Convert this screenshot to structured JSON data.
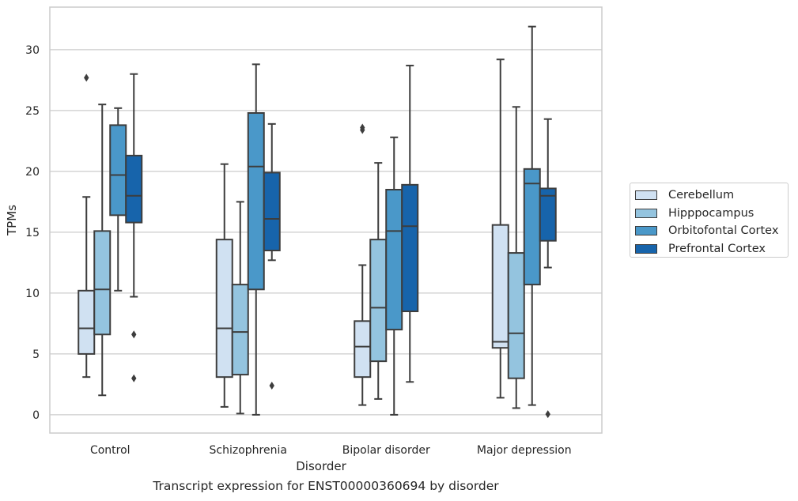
{
  "caption": "Transcript expression for ENST00000360694 by disorder",
  "legend_label_ids": [
    "Cerebellum",
    "Hipppocampus",
    "Orbitofontal Cortex",
    "Prefrontal Cortex"
  ],
  "chart_data": {
    "type": "box",
    "title": "",
    "xlabel": "Disorder",
    "ylabel": "TPMs",
    "ylim": [
      -1.5,
      33.5
    ],
    "yticks": [
      0,
      5,
      10,
      15,
      20,
      25,
      30
    ],
    "categories": [
      "Control",
      "Schizophrenia",
      "Bipolar disorder",
      "Major depression"
    ],
    "grid": "horizontal",
    "legend_position": "right",
    "series": [
      {
        "name": "Cerebellum",
        "color": "#d0e1f2",
        "boxes": [
          {
            "whislo": 3.1,
            "q1": 5.0,
            "med": 7.1,
            "q3": 10.2,
            "whishi": 17.9,
            "fliers": [
              27.7
            ]
          },
          {
            "whislo": 0.65,
            "q1": 3.1,
            "med": 7.1,
            "q3": 14.4,
            "whishi": 20.6,
            "fliers": []
          },
          {
            "whislo": 0.8,
            "q1": 3.1,
            "med": 5.6,
            "q3": 7.7,
            "whishi": 12.3,
            "fliers": [
              23.4,
              23.6
            ]
          },
          {
            "whislo": 1.4,
            "q1": 5.5,
            "med": 6.0,
            "q3": 15.6,
            "whishi": 29.2,
            "fliers": []
          }
        ]
      },
      {
        "name": "Hipppocampus",
        "color": "#94c4df",
        "boxes": [
          {
            "whislo": 1.6,
            "q1": 6.6,
            "med": 10.3,
            "q3": 15.1,
            "whishi": 25.5,
            "fliers": []
          },
          {
            "whislo": 0.1,
            "q1": 3.3,
            "med": 6.8,
            "q3": 10.7,
            "whishi": 17.5,
            "fliers": []
          },
          {
            "whislo": 1.3,
            "q1": 4.4,
            "med": 8.8,
            "q3": 14.4,
            "whishi": 20.7,
            "fliers": []
          },
          {
            "whislo": 0.55,
            "q1": 3.0,
            "med": 6.7,
            "q3": 13.3,
            "whishi": 25.3,
            "fliers": []
          }
        ]
      },
      {
        "name": "Orbitofontal Cortex",
        "color": "#4a98c9",
        "boxes": [
          {
            "whislo": 10.2,
            "q1": 16.4,
            "med": 19.7,
            "q3": 23.8,
            "whishi": 25.2,
            "fliers": []
          },
          {
            "whislo": 0.0,
            "q1": 10.3,
            "med": 20.4,
            "q3": 24.8,
            "whishi": 28.8,
            "fliers": []
          },
          {
            "whislo": 0.0,
            "q1": 7.0,
            "med": 15.1,
            "q3": 18.5,
            "whishi": 22.8,
            "fliers": []
          },
          {
            "whislo": 0.8,
            "q1": 10.7,
            "med": 19.0,
            "q3": 20.2,
            "whishi": 31.9,
            "fliers": []
          }
        ]
      },
      {
        "name": "Prefrontal Cortex",
        "color": "#1764ab",
        "boxes": [
          {
            "whislo": 9.7,
            "q1": 15.8,
            "med": 18.0,
            "q3": 21.3,
            "whishi": 28.0,
            "fliers": [
              6.6,
              3.0
            ]
          },
          {
            "whislo": 12.7,
            "q1": 13.5,
            "med": 16.1,
            "q3": 19.9,
            "whishi": 23.9,
            "fliers": [
              2.4
            ]
          },
          {
            "whislo": 2.7,
            "q1": 8.5,
            "med": 15.5,
            "q3": 18.9,
            "whishi": 28.7,
            "fliers": []
          },
          {
            "whislo": 12.1,
            "q1": 14.3,
            "med": 18.0,
            "q3": 18.6,
            "whishi": 24.3,
            "fliers": [
              0.05
            ]
          }
        ]
      }
    ]
  }
}
